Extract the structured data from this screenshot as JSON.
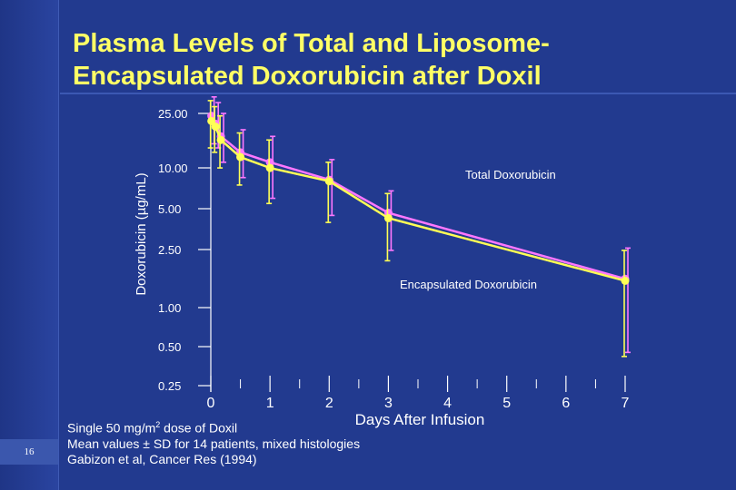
{
  "slide": {
    "number": "16",
    "title_line1": "Plasma Levels of Total and Liposome-",
    "title_line2": "Encapsulated Doxorubicin after Doxil",
    "note1_pre": "Single 50 mg/m",
    "note1_sup": "2",
    "note1_post": " dose of Doxil",
    "note2": "Mean values ± SD for 14 patients, mixed histologies",
    "note3": "Gabizon et al, Cancer Res (1994)"
  },
  "colors": {
    "background": "#223a8f",
    "total": "#ff77ff",
    "encapsulated": "#ffff55",
    "axis": "#ffffff",
    "title": "#ffff66"
  },
  "chart_data": {
    "type": "line",
    "xlabel": "Days After Infusion",
    "ylabel": "Doxorubicin (µg/mL)",
    "y_scale": "log",
    "x_ticks": [
      "0",
      "1",
      "2",
      "3",
      "4",
      "5",
      "6",
      "7"
    ],
    "y_ticks": [
      "25.00",
      "10.00",
      "5.00",
      "2.50",
      "1.00",
      "0.50",
      "0.25"
    ],
    "xlim": [
      0,
      7
    ],
    "series": [
      {
        "name": "Total Doxorubicin",
        "color": "#ff77ff",
        "x": [
          0.01,
          0.08,
          0.17,
          0.5,
          1,
          2,
          3,
          7
        ],
        "y": [
          24,
          21,
          17,
          13,
          11,
          8.2,
          4.7,
          1.55
        ],
        "err_lo": [
          15,
          14,
          11,
          8.5,
          6,
          4.5,
          2.5,
          0.45
        ],
        "err_hi": [
          33,
          30,
          25,
          19,
          17,
          11.5,
          6.8,
          2.6
        ]
      },
      {
        "name": "Encapsulated Doxorubicin",
        "color": "#ffff55",
        "x": [
          0.01,
          0.08,
          0.17,
          0.5,
          1,
          2,
          3,
          7
        ],
        "y": [
          22,
          20,
          16,
          12,
          10,
          8,
          4.3,
          1.5
        ],
        "err_lo": [
          14,
          13,
          10,
          7.5,
          5.5,
          4,
          2.1,
          0.42
        ],
        "err_hi": [
          31,
          28,
          24,
          18,
          16,
          11,
          6.5,
          2.5
        ]
      }
    ]
  }
}
